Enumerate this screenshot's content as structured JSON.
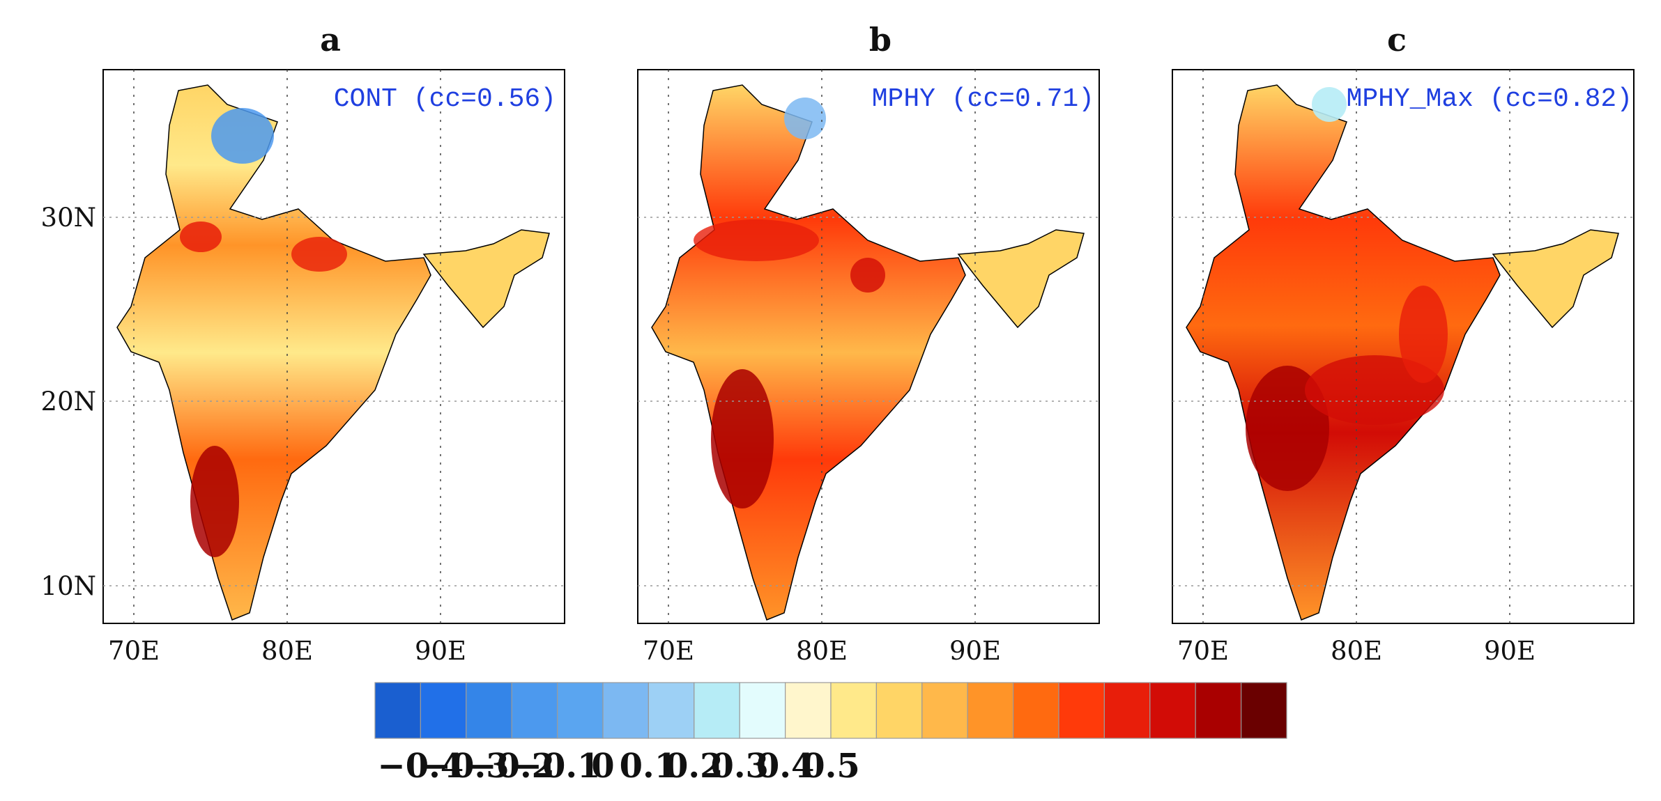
{
  "figure": {
    "type": "map-panels",
    "panels": [
      {
        "letter": "a",
        "label": "CONT (cc=0.56)"
      },
      {
        "letter": "b",
        "label": "MPHY (cc=0.71)"
      },
      {
        "letter": "c",
        "label": "MPHY_Max (cc=0.82)"
      }
    ],
    "lon_ticks": [
      "70E",
      "80E",
      "90E"
    ],
    "lat_ticks": [
      "30N",
      "20N",
      "10N"
    ],
    "colorbar": {
      "colors": [
        "#1a5fd0",
        "#2170e8",
        "#3485e8",
        "#4c99ee",
        "#5aa5f0",
        "#7cb8f2",
        "#9dd0f5",
        "#b6ecf6",
        "#e3fcfd",
        "#fff6cc",
        "#ffe98a",
        "#ffd566",
        "#ffb84a",
        "#ff9428",
        "#ff6a10",
        "#ff3a0a",
        "#e81e0a",
        "#d20c06",
        "#a90000",
        "#6a0000"
      ],
      "tick_labels": [
        "−0.4",
        "−0.3",
        "−0.2",
        "−0.1",
        "0",
        "0.1",
        "0.2",
        "0.3",
        "0.4",
        "0.5"
      ]
    }
  }
}
